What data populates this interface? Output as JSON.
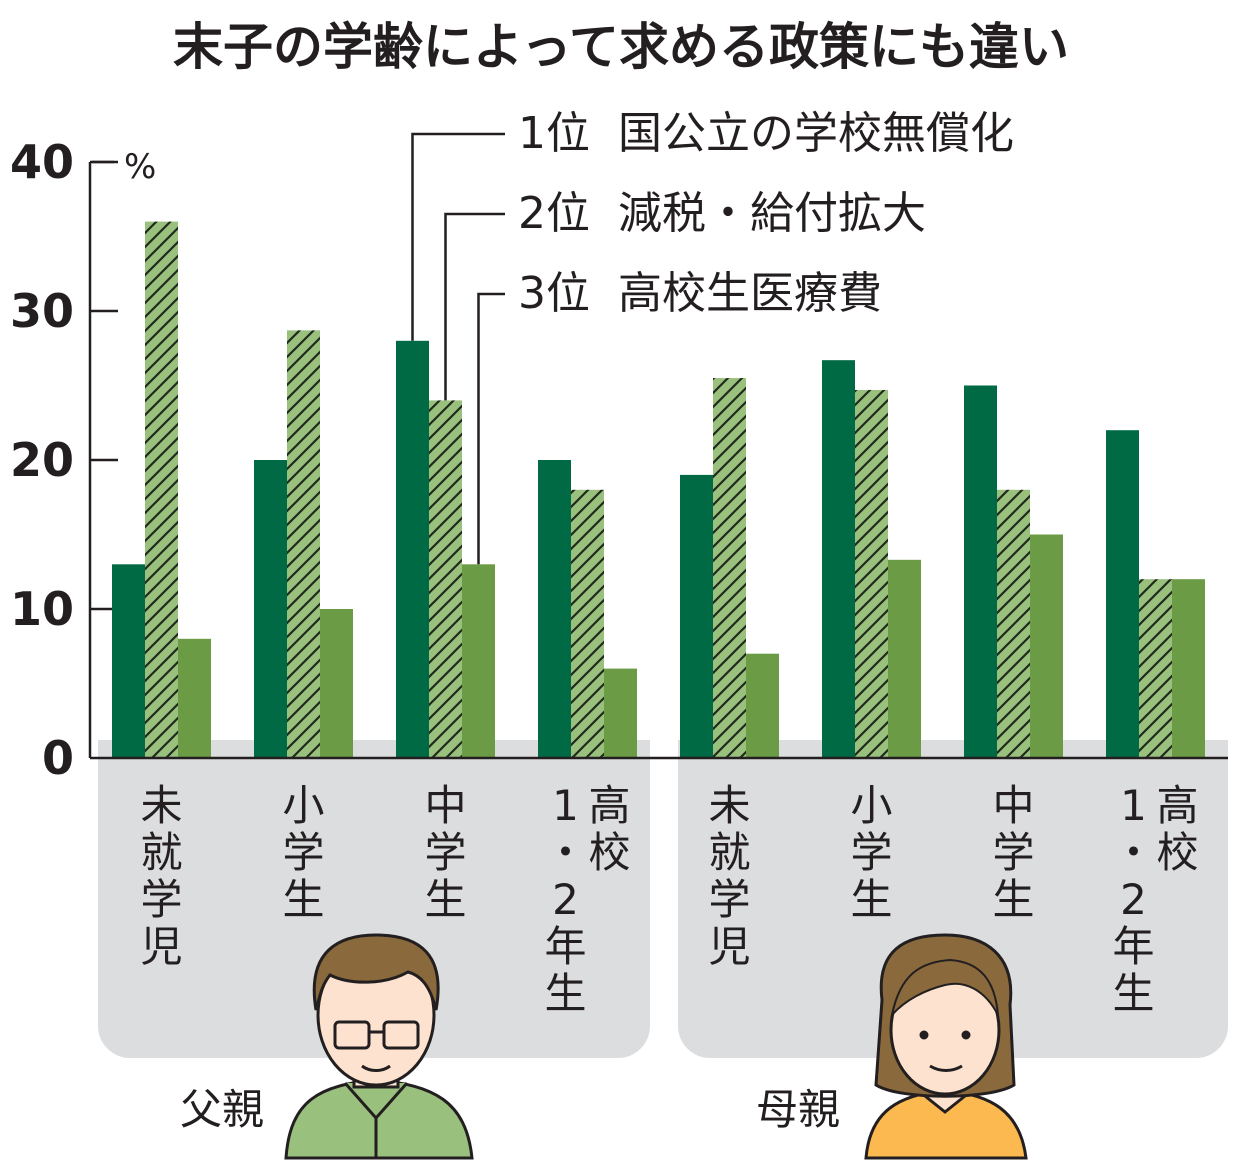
{
  "chart_data": {
    "type": "bar",
    "title": "末子の学齢によって求める政策にも違い",
    "ylabel": "%",
    "ylim": [
      0,
      40
    ],
    "yticks": [
      "0",
      "10",
      "20",
      "30",
      "40"
    ],
    "groups": [
      {
        "label": "父親",
        "categories": [
          "未就学児",
          "小学生",
          "中学生",
          "高校1・2年生"
        ]
      },
      {
        "label": "母親",
        "categories": [
          "未就学児",
          "小学生",
          "中学生",
          "高校1・2年生"
        ]
      }
    ],
    "category_display": [
      [
        "未",
        "就",
        "学",
        "児"
      ],
      [
        "小",
        "学",
        "生"
      ],
      [
        "中",
        "学",
        "生"
      ],
      [
        "高校",
        "1・2年生"
      ]
    ],
    "series": [
      {
        "name": "1位 国公立の学校無償化",
        "rank": "1位",
        "label": "国公立の学校無償化",
        "color": "#006a45",
        "values": [
          13,
          20,
          28,
          20,
          19,
          26.7,
          25,
          22
        ]
      },
      {
        "name": "2位 減税・給付拡大",
        "rank": "2位",
        "label": "減税・給付拡大",
        "color": "#9ac07e",
        "pattern": "hatch",
        "values": [
          36,
          28.7,
          24,
          18,
          25.5,
          24.7,
          18,
          12
        ]
      },
      {
        "name": "3位 高校生医療費",
        "rank": "3位",
        "label": "高校生医療費",
        "color": "#6b9b45",
        "values": [
          8,
          10,
          13,
          6,
          7,
          13.3,
          15,
          12
        ]
      }
    ],
    "grid": false,
    "legend": "top-right"
  },
  "colors": {
    "panel": "#dcddde",
    "father_shirt": "#9ac07e",
    "mother_shirt": "#fcb94f",
    "hair": "#8a6a3c",
    "skin": "#fde3cf"
  },
  "icons": {
    "father": "man-avatar-icon",
    "mother": "woman-avatar-icon"
  }
}
